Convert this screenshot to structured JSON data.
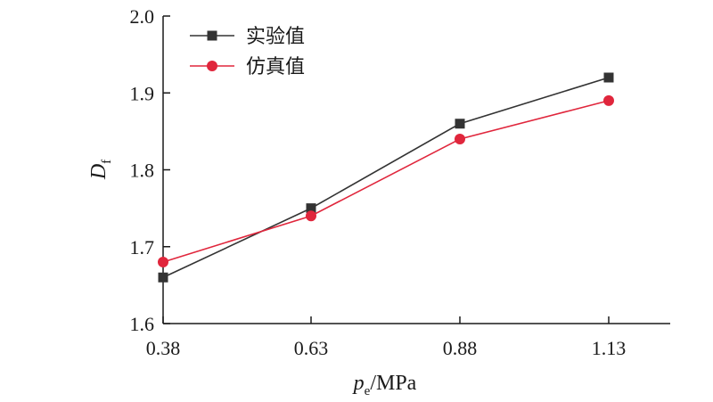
{
  "chart_data": {
    "type": "line",
    "x_categories": [
      "0.38",
      "0.63",
      "0.88",
      "1.13"
    ],
    "y_ticks": [
      "1.6",
      "1.7",
      "1.8",
      "1.9",
      "2.0"
    ],
    "ylim": [
      1.6,
      2.0
    ],
    "xlabel_main": "p",
    "xlabel_sub": "e",
    "xlabel_unit": "/MPa",
    "ylabel_main": "D",
    "ylabel_sub": "f",
    "legend_position": "top-left",
    "grid": false,
    "series": [
      {
        "name": "实验值",
        "marker": "square",
        "color": "#333333",
        "values": [
          1.66,
          1.75,
          1.86,
          1.92
        ]
      },
      {
        "name": "仿真值",
        "marker": "circle",
        "color": "#e0263c",
        "values": [
          1.68,
          1.74,
          1.84,
          1.89
        ]
      }
    ]
  }
}
